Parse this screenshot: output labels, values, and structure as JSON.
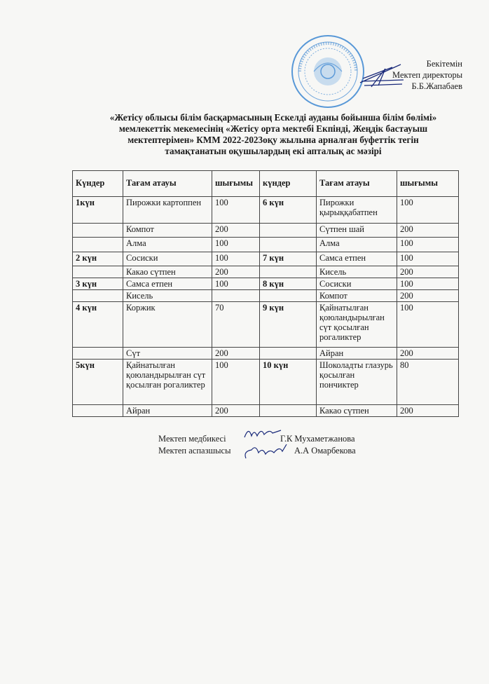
{
  "approval": {
    "line1": "Бекітемін",
    "line2": "Мектеп директоры",
    "line3": "Б.Б.Жапабаев"
  },
  "stamp_text": "ЕСКЕЛДІ АУДАНЫ БОЙЫНША БІЛІМ БӨЛІМІ «ЖЕТІСУ ОРТА МЕКТЕБІ ЕКПІНДІ» КОММУНАЛДЫҚ МЕМЛЕКЕТ",
  "stamp_color": "#2f7fd0",
  "title": {
    "line1": "«Жетісу облысы білім басқармасының Ескелді ауданы бойынша білім бөлімі»",
    "line2": "мемлекеттік мекемесінің  «Жетісу орта мектебі Екпінді, Жеңдік бастауыш",
    "line3": "мектептерімен» КММ 2022-2023оқу жылына арналған  буфеттік   тегін",
    "line4": "тамақтанатын оқушылардың  екі апталық  ас мәзірі"
  },
  "table": {
    "headers": [
      "Күндер",
      "Тағам атауы",
      "шығымы",
      "күндер",
      "Тағам атауы",
      "шығымы"
    ],
    "rows": [
      [
        "1күн",
        "Пирожки картоппен",
        "100",
        "6 күн",
        "Пирожки қырыққабатпен",
        "100"
      ],
      [
        "",
        "Компот",
        "200",
        "",
        "Сүтпен шай",
        "200"
      ],
      [
        "",
        "Алма",
        "100",
        "",
        "Алма",
        "100"
      ],
      [
        "2 күн",
        "Сосиски",
        "100",
        "7 күн",
        "Самса етпен",
        "100"
      ],
      [
        "",
        "Какао сүтпен",
        "200",
        "",
        "Кисель",
        "200"
      ],
      [
        "3 күн",
        "Самса етпен",
        "100",
        "8 күн",
        "Сосиски",
        "100"
      ],
      [
        "",
        "Кисель",
        "",
        "",
        "Компот",
        "200"
      ],
      [
        "4 күн",
        "Коржик",
        "70",
        "9 күн",
        "Қайнатылған қоюландырылған сүт қосылған рогаликтер",
        "100"
      ],
      [
        "",
        "Сүт",
        "200",
        "",
        "Айран",
        "200"
      ],
      [
        "5күн",
        "Қайнатылған қоюландырылған сүт қосылған рогаликтер",
        "100",
        "10 күн",
        "Шоколадты глазурь қосылған пончиктер",
        "80"
      ],
      [
        "",
        "Айран",
        "200",
        "",
        "Какао сүтпен",
        "200"
      ]
    ]
  },
  "signatures": [
    {
      "role": "Мектеп медбикесі",
      "name": "Г.К Мухаметжанова"
    },
    {
      "role": "Мектеп аспазшысы",
      "name": "А.А Омарбекова"
    }
  ]
}
